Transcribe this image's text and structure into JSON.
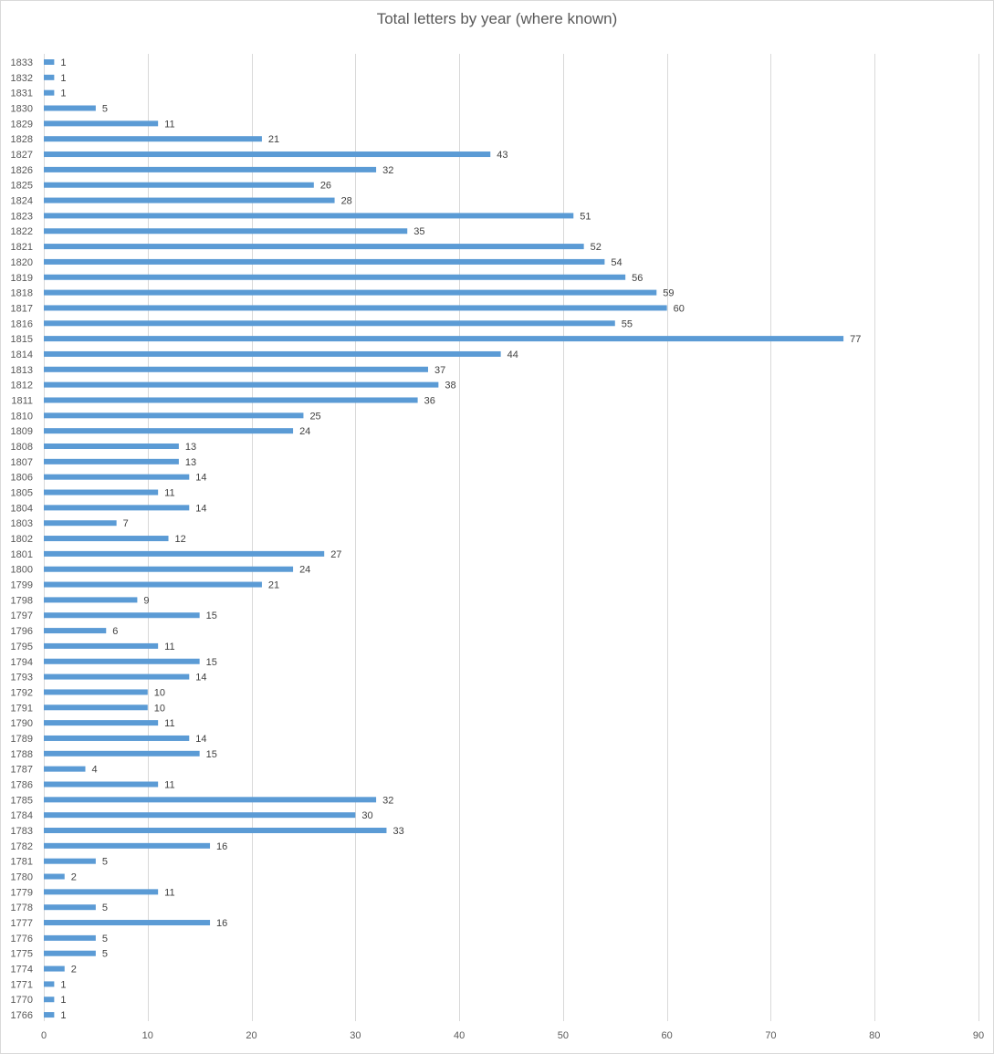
{
  "chart_data": {
    "type": "bar",
    "orientation": "horizontal",
    "title": "Total letters by year (where known)",
    "xlabel": "",
    "ylabel": "",
    "xlim": [
      0,
      90
    ],
    "x_ticks": [
      0,
      10,
      20,
      30,
      40,
      50,
      60,
      70,
      80,
      90
    ],
    "grid": "vertical",
    "legend": "none",
    "bar_color": "#5b9bd5",
    "categories": [
      "1833",
      "1832",
      "1831",
      "1830",
      "1829",
      "1828",
      "1827",
      "1826",
      "1825",
      "1824",
      "1823",
      "1822",
      "1821",
      "1820",
      "1819",
      "1818",
      "1817",
      "1816",
      "1815",
      "1814",
      "1813",
      "1812",
      "1811",
      "1810",
      "1809",
      "1808",
      "1807",
      "1806",
      "1805",
      "1804",
      "1803",
      "1802",
      "1801",
      "1800",
      "1799",
      "1798",
      "1797",
      "1796",
      "1795",
      "1794",
      "1793",
      "1792",
      "1791",
      "1790",
      "1789",
      "1788",
      "1787",
      "1786",
      "1785",
      "1784",
      "1783",
      "1782",
      "1781",
      "1780",
      "1779",
      "1778",
      "1777",
      "1776",
      "1775",
      "1774",
      "1771",
      "1770",
      "1766"
    ],
    "values": [
      1,
      1,
      1,
      5,
      11,
      21,
      43,
      32,
      26,
      28,
      51,
      35,
      52,
      54,
      56,
      59,
      60,
      55,
      77,
      44,
      37,
      38,
      36,
      25,
      24,
      13,
      13,
      14,
      11,
      14,
      7,
      12,
      27,
      24,
      21,
      9,
      15,
      6,
      11,
      15,
      14,
      10,
      10,
      11,
      14,
      15,
      4,
      11,
      32,
      30,
      33,
      16,
      5,
      2,
      11,
      5,
      16,
      5,
      5,
      2,
      1,
      1,
      1
    ],
    "data_labels": true
  }
}
